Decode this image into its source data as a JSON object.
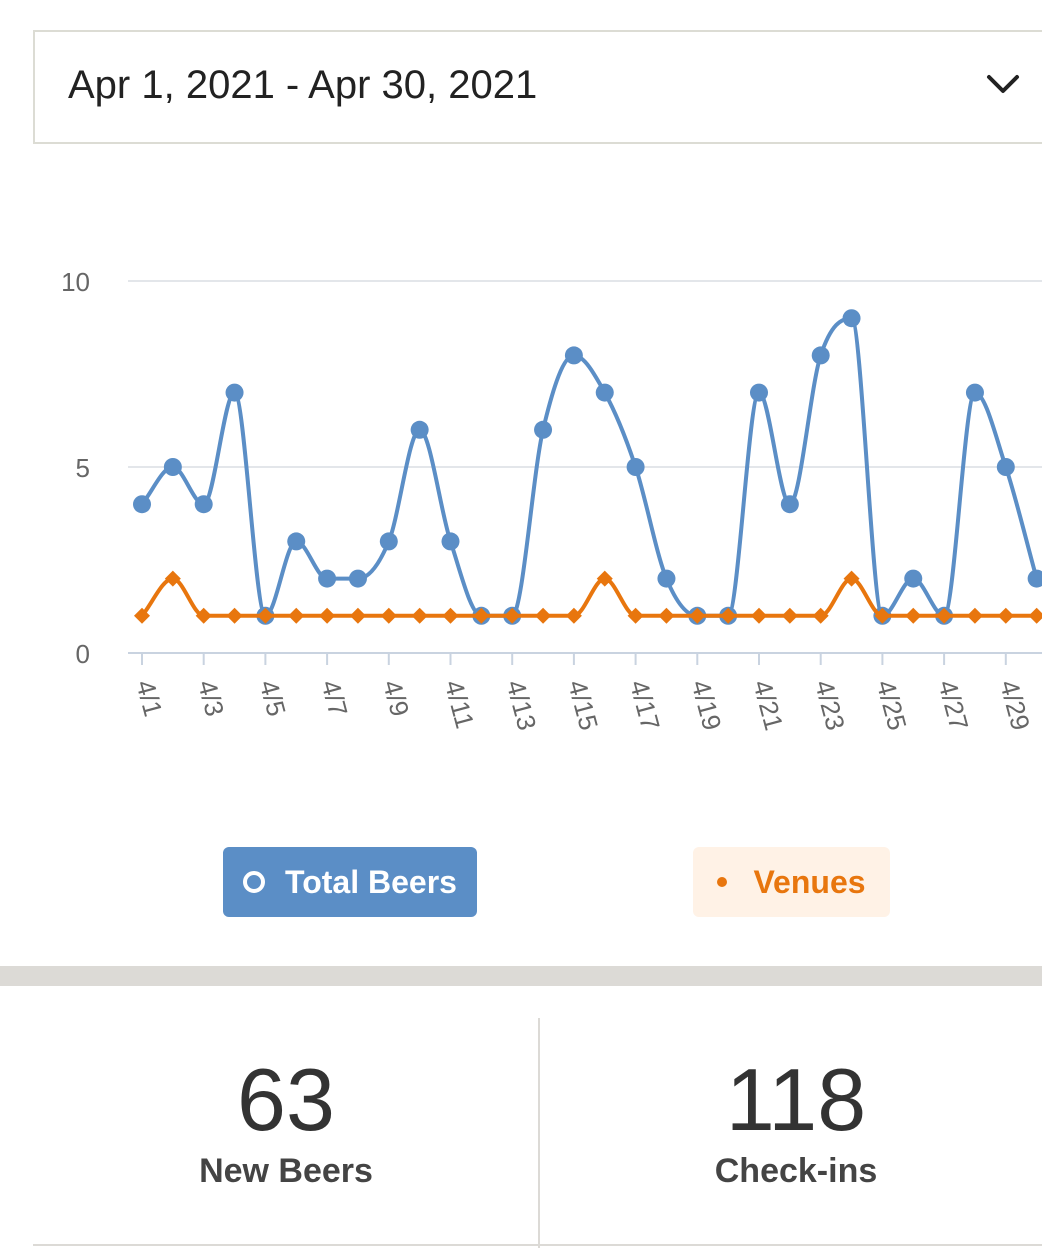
{
  "date_range": {
    "value": "Apr 1, 2021 - Apr 30, 2021",
    "icon": "chevron-down-icon"
  },
  "chart_data": {
    "type": "line",
    "x": [
      "4/1",
      "4/2",
      "4/3",
      "4/4",
      "4/5",
      "4/6",
      "4/7",
      "4/8",
      "4/9",
      "4/10",
      "4/11",
      "4/12",
      "4/13",
      "4/14",
      "4/15",
      "4/16",
      "4/17",
      "4/18",
      "4/19",
      "4/20",
      "4/21",
      "4/22",
      "4/23",
      "4/24",
      "4/25",
      "4/26",
      "4/27",
      "4/28",
      "4/29",
      "4/30"
    ],
    "x_tick_labels": [
      "4/1",
      "4/3",
      "4/5",
      "4/7",
      "4/9",
      "4/11",
      "4/13",
      "4/15",
      "4/17",
      "4/19",
      "4/21",
      "4/23",
      "4/25",
      "4/27",
      "4/29"
    ],
    "y_ticks": [
      0,
      5,
      10
    ],
    "ylim": [
      0,
      10
    ],
    "grid": true,
    "series": [
      {
        "name": "Total Beers",
        "color": "#5b8ec6",
        "marker": "circle",
        "values": [
          4,
          5,
          4,
          7,
          1,
          3,
          2,
          2,
          3,
          6,
          3,
          1,
          1,
          6,
          8,
          7,
          5,
          2,
          1,
          1,
          7,
          4,
          8,
          9,
          1,
          2,
          1,
          7,
          5,
          2
        ]
      },
      {
        "name": "Venues",
        "color": "#e8760e",
        "marker": "diamond",
        "values": [
          1,
          2,
          1,
          1,
          1,
          1,
          1,
          1,
          1,
          1,
          1,
          1,
          1,
          1,
          1,
          2,
          1,
          1,
          1,
          1,
          1,
          1,
          1,
          2,
          1,
          1,
          1,
          1,
          1,
          1
        ]
      }
    ]
  },
  "legend": {
    "beers_label": "Total Beers",
    "venues_label": "Venues"
  },
  "stats": {
    "new_beers": {
      "value": "63",
      "label": "New Beers"
    },
    "checkins": {
      "value": "118",
      "label": "Check-ins"
    }
  }
}
